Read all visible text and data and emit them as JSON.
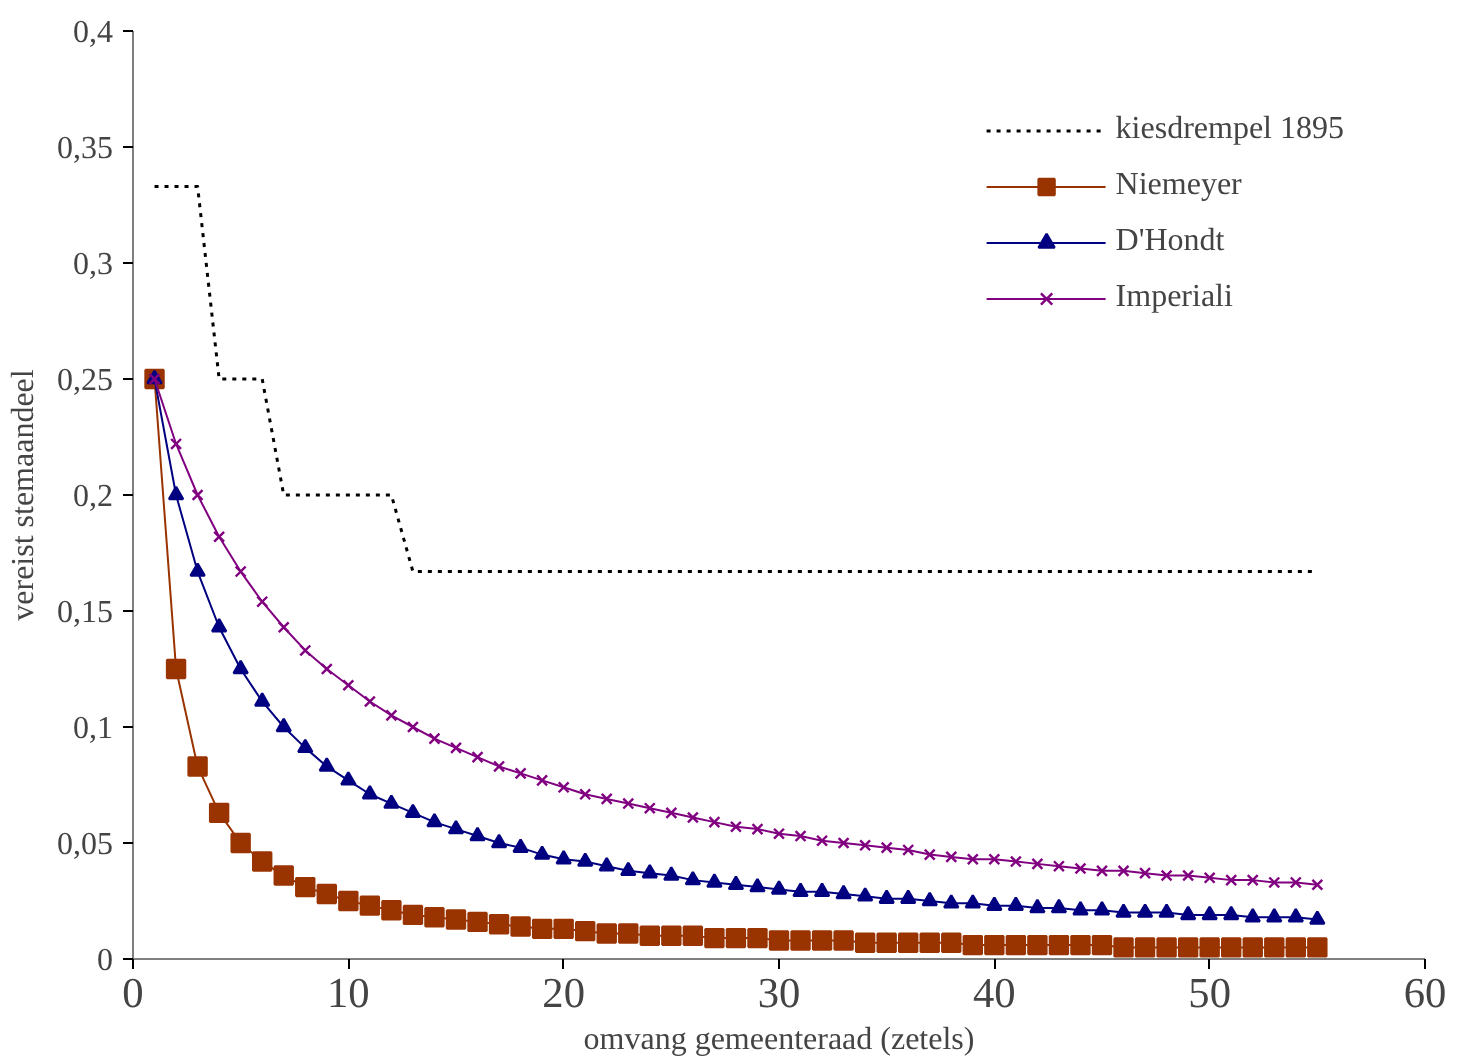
{
  "chart_data": {
    "type": "line",
    "xlabel": "omvang gemeenteraad (zetels)",
    "ylabel": "vereist stemaandeel",
    "x": [
      1,
      2,
      3,
      4,
      5,
      6,
      7,
      8,
      9,
      10,
      11,
      12,
      13,
      14,
      15,
      16,
      17,
      18,
      19,
      20,
      21,
      22,
      23,
      24,
      25,
      26,
      27,
      28,
      29,
      30,
      31,
      32,
      33,
      34,
      35,
      36,
      37,
      38,
      39,
      40,
      41,
      42,
      43,
      44,
      45,
      46,
      47,
      48,
      49,
      50,
      51,
      52,
      53,
      54,
      55
    ],
    "series": [
      {
        "name": "kiesdrempel 1895",
        "color": "#000000",
        "line_style": "dotted",
        "marker": "none",
        "x": [
          1,
          3,
          4,
          6,
          7,
          12,
          13,
          55
        ],
        "values": [
          0.333,
          0.333,
          0.25,
          0.25,
          0.2,
          0.2,
          0.167,
          0.167
        ]
      },
      {
        "name": "Niemeyer",
        "color": "#993300",
        "marker": "square",
        "values": [
          0.25,
          0.125,
          0.083,
          0.063,
          0.05,
          0.042,
          0.036,
          0.031,
          0.028,
          0.025,
          0.023,
          0.021,
          0.019,
          0.018,
          0.017,
          0.016,
          0.015,
          0.014,
          0.013,
          0.013,
          0.012,
          0.011,
          0.011,
          0.01,
          0.01,
          0.01,
          0.009,
          0.009,
          0.009,
          0.008,
          0.008,
          0.008,
          0.008,
          0.007,
          0.007,
          0.007,
          0.007,
          0.007,
          0.006,
          0.006,
          0.006,
          0.006,
          0.006,
          0.006,
          0.006,
          0.005,
          0.005,
          0.005,
          0.005,
          0.005,
          0.005,
          0.005,
          0.005,
          0.005,
          0.005
        ]
      },
      {
        "name": "D'Hondt",
        "color": "#000080",
        "marker": "triangle",
        "values": [
          0.25,
          0.2,
          0.167,
          0.143,
          0.125,
          0.111,
          0.1,
          0.091,
          0.083,
          0.077,
          0.071,
          0.067,
          0.063,
          0.059,
          0.056,
          0.053,
          0.05,
          0.048,
          0.045,
          0.043,
          0.042,
          0.04,
          0.038,
          0.037,
          0.036,
          0.034,
          0.033,
          0.032,
          0.031,
          0.03,
          0.029,
          0.029,
          0.028,
          0.027,
          0.026,
          0.026,
          0.025,
          0.024,
          0.024,
          0.023,
          0.023,
          0.022,
          0.022,
          0.021,
          0.021,
          0.02,
          0.02,
          0.02,
          0.019,
          0.019,
          0.019,
          0.018,
          0.018,
          0.018,
          0.017
        ]
      },
      {
        "name": "Imperiali",
        "color": "#800080",
        "marker": "cross",
        "values": [
          0.25,
          0.222,
          0.2,
          0.182,
          0.167,
          0.154,
          0.143,
          0.133,
          0.125,
          0.118,
          0.111,
          0.105,
          0.1,
          0.095,
          0.091,
          0.087,
          0.083,
          0.08,
          0.077,
          0.074,
          0.071,
          0.069,
          0.067,
          0.065,
          0.063,
          0.061,
          0.059,
          0.057,
          0.056,
          0.054,
          0.053,
          0.051,
          0.05,
          0.049,
          0.048,
          0.047,
          0.045,
          0.044,
          0.043,
          0.043,
          0.042,
          0.041,
          0.04,
          0.039,
          0.038,
          0.038,
          0.037,
          0.036,
          0.036,
          0.035,
          0.034,
          0.034,
          0.033,
          0.033,
          0.032
        ]
      }
    ],
    "xlim": [
      0,
      60
    ],
    "xticks": [
      0,
      10,
      20,
      30,
      40,
      50,
      60
    ],
    "ylim": [
      0,
      0.4
    ],
    "yticks": [
      0,
      {
        "value": 0.05,
        "label": "0,05"
      },
      {
        "value": 0.1,
        "label": "0,1"
      },
      {
        "value": 0.15,
        "label": "0,15"
      },
      {
        "value": 0.2,
        "label": "0,2"
      },
      {
        "value": 0.25,
        "label": "0,25"
      },
      {
        "value": 0.3,
        "label": "0,3"
      },
      {
        "value": 0.35,
        "label": "0,35"
      },
      {
        "value": 0.4,
        "label": "0,4"
      }
    ],
    "grid": false,
    "legend": "top right"
  }
}
